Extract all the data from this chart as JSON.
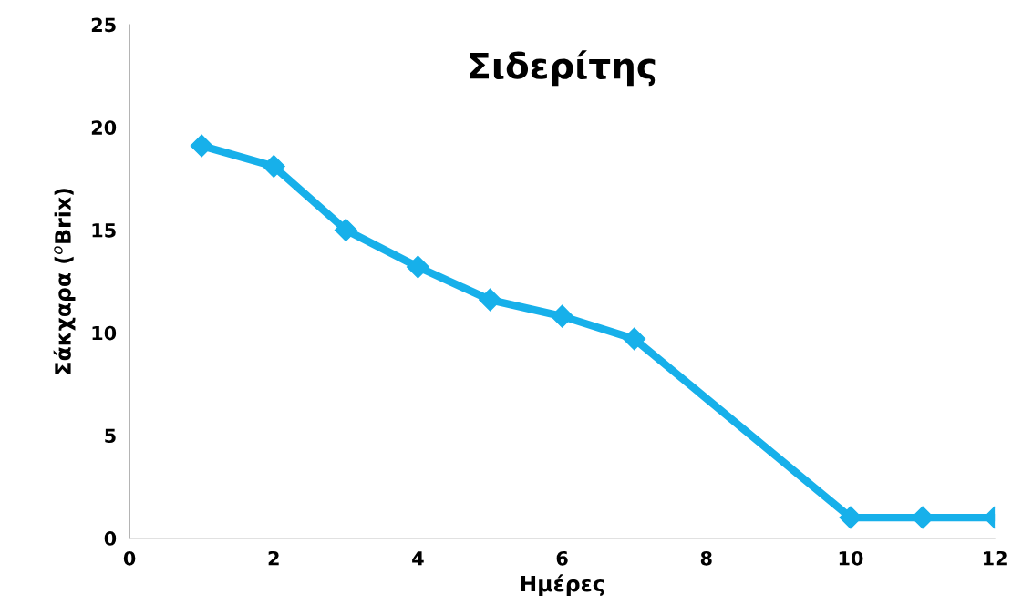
{
  "chart_data": {
    "type": "line",
    "title": "Σιδερίτης",
    "xlabel": "Ημέρες",
    "ylabel": "Σάκχαρα ($^{o}$Brix)",
    "x": [
      1,
      2,
      3,
      4,
      5,
      6,
      7,
      10,
      11,
      12
    ],
    "series": [
      {
        "color": "#17b0ea",
        "values": [
          19.1,
          18.1,
          15.0,
          13.2,
          11.6,
          10.8,
          9.7,
          1.0,
          1.0,
          1.0
        ]
      }
    ],
    "xlim": [
      0,
      12
    ],
    "xticks": [
      0,
      2,
      4,
      6,
      8,
      10,
      12
    ],
    "ylim": [
      0,
      25
    ],
    "yticks": [
      0,
      5,
      10,
      15,
      20,
      25
    ],
    "grid": false,
    "marker": "diamond",
    "line_style": "solid"
  }
}
